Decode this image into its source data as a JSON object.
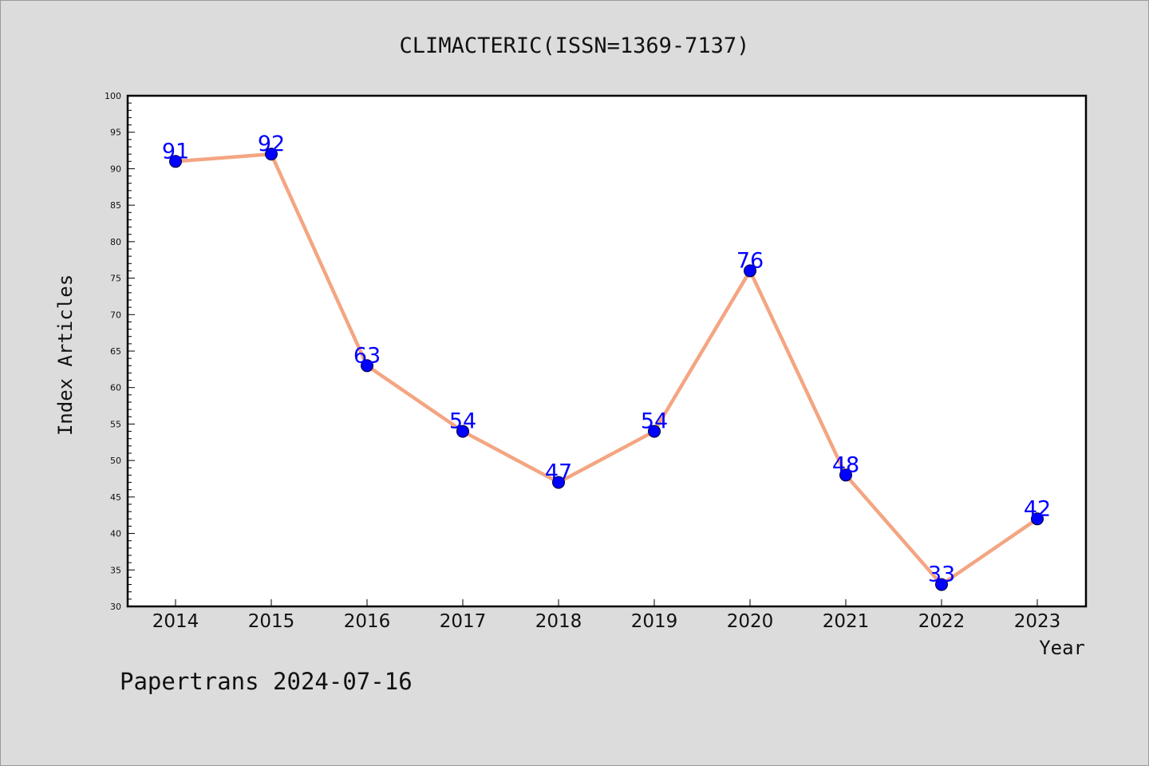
{
  "chart_data": {
    "type": "line",
    "title": "CLIMACTERIC(ISSN=1369-7137)",
    "xlabel": "Year",
    "ylabel": "Index Articles",
    "footer": "Papertrans 2024-07-16",
    "categories": [
      "2014",
      "2015",
      "2016",
      "2017",
      "2018",
      "2019",
      "2020",
      "2021",
      "2022",
      "2023"
    ],
    "series": [
      {
        "values": [
          91,
          92,
          63,
          54,
          47,
          54,
          76,
          48,
          33,
          42
        ]
      }
    ],
    "ylim": [
      30,
      100
    ],
    "ymajor_step": 5,
    "yminor_step": 1,
    "grid": false,
    "colors": {
      "background": "#dcdcdc",
      "plot_background": "#ffffff",
      "line": "#f4a582",
      "marker": "#0000ff",
      "data_label": "#0000ff",
      "text": "#111111"
    }
  }
}
